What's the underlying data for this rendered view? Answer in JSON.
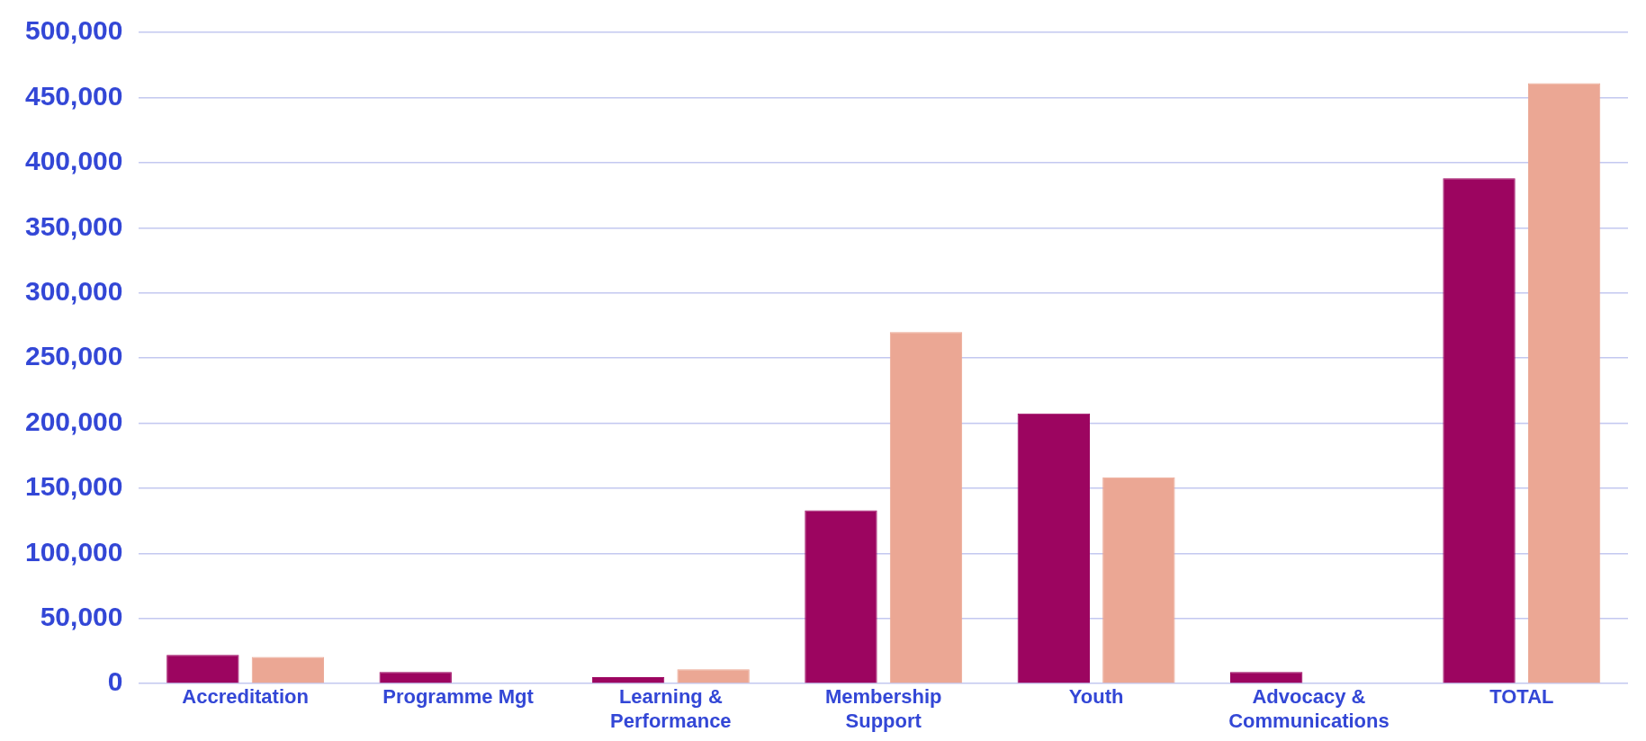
{
  "chart_data": {
    "type": "bar",
    "categories": [
      "Accreditation",
      "Programme Mgt",
      "Learning & Performance",
      "Membership Support",
      "Youth",
      "Advocacy & Communications",
      "TOTAL"
    ],
    "series": [
      {
        "color": "#9c0560",
        "values": [
          22000,
          9000,
          5000,
          133000,
          207500,
          9000,
          388000
        ]
      },
      {
        "color": "#eba794",
        "values": [
          20500,
          null,
          11000,
          270000,
          158500,
          null,
          461000
        ]
      }
    ],
    "ylim": [
      0,
      500000
    ],
    "yticks": [
      0,
      {
        "value": 50000,
        "label": "50,000"
      },
      {
        "value": 100000,
        "label": "100,000"
      },
      {
        "value": 150000,
        "label": "150,000"
      },
      {
        "value": 200000,
        "label": "200,000"
      },
      {
        "value": 250000,
        "label": "250,000"
      },
      {
        "value": 300000,
        "label": "300,000"
      },
      {
        "value": 350000,
        "label": "350,000"
      },
      {
        "value": 400000,
        "label": "400,000"
      },
      {
        "value": 450000,
        "label": "450,000"
      },
      {
        "value": 500000,
        "label": "500,000"
      }
    ],
    "grid": "y",
    "legend": false
  }
}
